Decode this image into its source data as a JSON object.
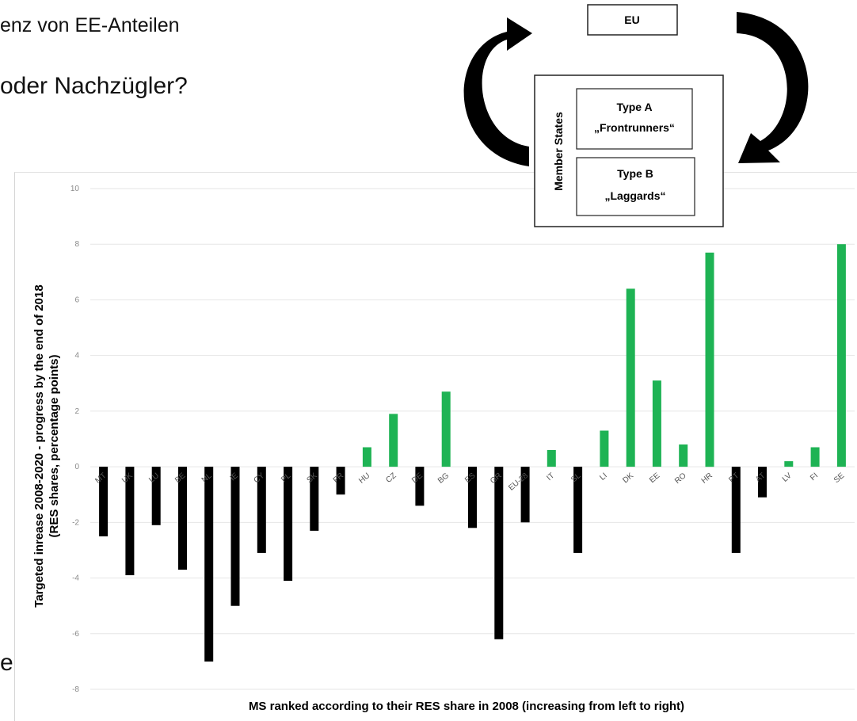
{
  "slide": {
    "line1": "enz von EE-Anteilen",
    "line2": "oder Nachzügler?",
    "line3": "e"
  },
  "diagram": {
    "top_box": "EU",
    "group_label": "Member States",
    "type_a_title": "Type A",
    "type_a_name": "„Frontrunners“",
    "type_b_title": "Type B",
    "type_b_name": "„Laggards“"
  },
  "chart_data": {
    "type": "bar",
    "title": "",
    "xlabel": "MS ranked according to their RES share in 2008 (increasing from left to right)",
    "ylabel_line1": "Targeted inrease 2008-2020 - progress by the end of 2018",
    "ylabel_line2": "(RES shares, percentage points)",
    "ylim": [
      -8,
      10
    ],
    "yticks": [
      -8,
      -6,
      -4,
      -2,
      0,
      2,
      4,
      6,
      8,
      10
    ],
    "grid": true,
    "categories": [
      "MT",
      "UK",
      "LU",
      "BE",
      "NL",
      "IE",
      "CY",
      "PL",
      "SK",
      "FR",
      "HU",
      "CZ",
      "DE",
      "BG",
      "ES",
      "GR",
      "EU-28",
      "IT",
      "SL",
      "LI",
      "DK",
      "EE",
      "RO",
      "HR",
      "PT",
      "AT",
      "LV",
      "FI",
      "SE"
    ],
    "values": [
      -2.5,
      -3.9,
      -2.1,
      -3.7,
      -7.0,
      -5.0,
      -3.1,
      -4.1,
      -2.3,
      -1.0,
      0.7,
      1.9,
      -1.4,
      2.7,
      -2.2,
      -6.2,
      -2.0,
      0.6,
      -3.1,
      1.3,
      6.4,
      3.1,
      0.8,
      7.7,
      -3.1,
      -1.1,
      0.2,
      0.7,
      8.0
    ],
    "colors": {
      "positive": "#1eb354",
      "negative": "#000000",
      "grid": "#e6e6e6",
      "tick_text": "#8a8a8a"
    }
  }
}
